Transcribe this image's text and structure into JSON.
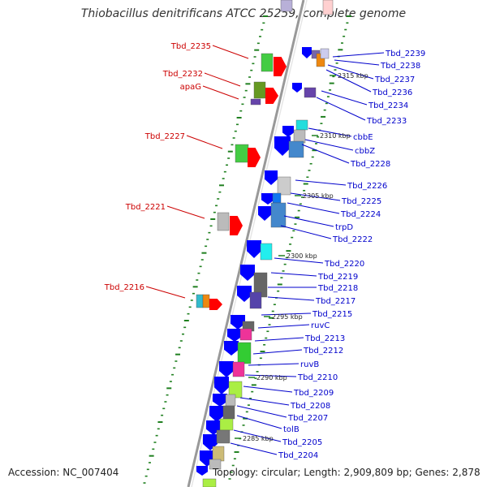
{
  "title": "Thiobacillus denitrificans ATCC 25259, complete genome",
  "accession": "Accession: NC_007404",
  "topology": "Topology: circular; Length: 2,909,809 bp; Genes: 2,878",
  "colors": {
    "left_label": "#cc0000",
    "right_label": "#0000cc",
    "forward_arrow": "#ff0000",
    "reverse_arrow": "#0000ff",
    "backbone": "#999999"
  },
  "scale_labels": [
    "2315 kbp",
    "2310 kbp",
    "2305 kbp",
    "2300 kbp",
    "2295 kbp",
    "2290 kbp",
    "2285 kbp"
  ],
  "left_labels": [
    "Tbd_2235",
    "Tbd_2232",
    "apaG",
    "Tbd_2227",
    "Tbd_2221",
    "Tbd_2216"
  ],
  "right_labels": [
    "Tbd_2239",
    "Tbd_2238",
    "Tbd_2237",
    "Tbd_2236",
    "Tbd_2234",
    "Tbd_2233",
    "cbbE",
    "cbbZ",
    "Tbd_2228",
    "Tbd_2226",
    "Tbd_2225",
    "Tbd_2224",
    "trpD",
    "Tbd_2222",
    "Tbd_2220",
    "Tbd_2219",
    "Tbd_2218",
    "Tbd_2217",
    "Tbd_2215",
    "ruvC",
    "Tbd_2213",
    "Tbd_2212",
    "ruvB",
    "Tbd_2210",
    "Tbd_2209",
    "Tbd_2208",
    "Tbd_2207",
    "tolB",
    "Tbd_2205",
    "Tbd_2204"
  ]
}
